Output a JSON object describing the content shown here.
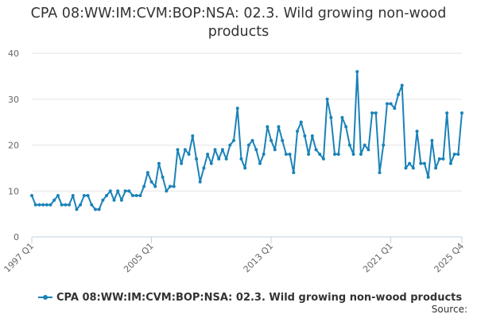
{
  "chart_data": {
    "type": "line",
    "title": "CPA 08:WW:IM:CVM:BOP:NSA: 02.3. Wild growing non-wood products",
    "xlabel": "",
    "ylabel": "",
    "ylim": [
      0,
      40
    ],
    "yticks": [
      0,
      10,
      20,
      30,
      40
    ],
    "xticks": [
      "1997 Q1",
      "2005 Q1",
      "2013 Q1",
      "2021 Q1",
      "2025 Q4"
    ],
    "xtick_indices": [
      0,
      32,
      64,
      96,
      115
    ],
    "grid": true,
    "legend_position": "bottom-left",
    "color": "#1a82b8",
    "x_start": "1997 Q1",
    "x_end": "2025 Q4",
    "series": [
      {
        "name": "CPA 08:WW:IM:CVM:BOP:NSA: 02.3. Wild growing non-wood products",
        "values": [
          9,
          7,
          7,
          7,
          7,
          7,
          8,
          9,
          7,
          7,
          7,
          9,
          6,
          7,
          9,
          9,
          7,
          6,
          6,
          8,
          9,
          10,
          8,
          10,
          8,
          10,
          10,
          9,
          9,
          9,
          11,
          14,
          12,
          11,
          16,
          13,
          10,
          11,
          11,
          19,
          16,
          19,
          18,
          22,
          17,
          12,
          15,
          18,
          16,
          19,
          17,
          19,
          17,
          20,
          21,
          28,
          17,
          15,
          20,
          21,
          19,
          16,
          18,
          24,
          21,
          19,
          24,
          21,
          18,
          18,
          14,
          23,
          25,
          22,
          18,
          22,
          19,
          18,
          17,
          30,
          26,
          18,
          18,
          26,
          24,
          20,
          18,
          36,
          18,
          20,
          19,
          27,
          27,
          14,
          20,
          29,
          29,
          28,
          31,
          33,
          15,
          16,
          15,
          23,
          16,
          16,
          13,
          21,
          15,
          17,
          17,
          27,
          16,
          18,
          18,
          27
        ]
      }
    ]
  },
  "legend": {
    "label": "CPA 08:WW:IM:CVM:BOP:NSA: 02.3. Wild growing non-wood products"
  },
  "source_label": "Source:"
}
